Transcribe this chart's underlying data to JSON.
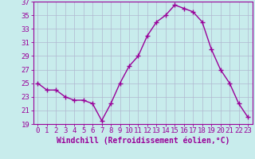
{
  "x": [
    0,
    1,
    2,
    3,
    4,
    5,
    6,
    7,
    8,
    9,
    10,
    11,
    12,
    13,
    14,
    15,
    16,
    17,
    18,
    19,
    20,
    21,
    22,
    23
  ],
  "y": [
    25,
    24,
    24,
    23,
    22.5,
    22.5,
    22,
    19.5,
    22,
    25,
    27.5,
    29,
    32,
    34,
    35,
    36.5,
    36,
    35.5,
    34,
    30,
    27,
    25,
    22,
    20
  ],
  "line_color": "#990099",
  "marker": "+",
  "marker_size": 4,
  "marker_linewidth": 1.0,
  "bg_color": "#c8ecec",
  "grid_color": "#b0b8d0",
  "xlabel": "Windchill (Refroidissement éolien,°C)",
  "ylabel": "",
  "ylim": [
    19,
    37
  ],
  "xlim": [
    -0.5,
    23.5
  ],
  "yticks": [
    19,
    21,
    23,
    25,
    27,
    29,
    31,
    33,
    35,
    37
  ],
  "xticks": [
    0,
    1,
    2,
    3,
    4,
    5,
    6,
    7,
    8,
    9,
    10,
    11,
    12,
    13,
    14,
    15,
    16,
    17,
    18,
    19,
    20,
    21,
    22,
    23
  ],
  "tick_color": "#990099",
  "label_color": "#990099",
  "title": "",
  "spine_color": "#990099",
  "linewidth": 1.0,
  "xlabel_fontsize": 7,
  "tick_fontsize": 6.5
}
